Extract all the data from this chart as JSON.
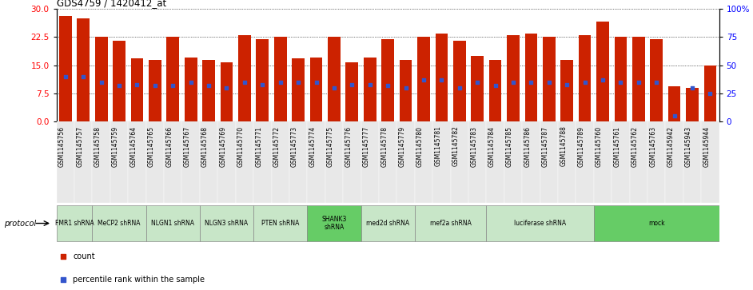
{
  "title": "GDS4759 / 1420412_at",
  "samples": [
    "GSM1145756",
    "GSM1145757",
    "GSM1145758",
    "GSM1145759",
    "GSM1145764",
    "GSM1145765",
    "GSM1145766",
    "GSM1145767",
    "GSM1145768",
    "GSM1145769",
    "GSM1145770",
    "GSM1145771",
    "GSM1145772",
    "GSM1145773",
    "GSM1145774",
    "GSM1145775",
    "GSM1145776",
    "GSM1145777",
    "GSM1145778",
    "GSM1145779",
    "GSM1145780",
    "GSM1145781",
    "GSM1145782",
    "GSM1145783",
    "GSM1145784",
    "GSM1145785",
    "GSM1145786",
    "GSM1145787",
    "GSM1145788",
    "GSM1145789",
    "GSM1145760",
    "GSM1145761",
    "GSM1145762",
    "GSM1145763",
    "GSM1145942",
    "GSM1145943",
    "GSM1145944"
  ],
  "counts": [
    28.0,
    27.5,
    22.5,
    21.5,
    16.8,
    16.5,
    22.5,
    17.0,
    16.5,
    15.8,
    23.0,
    22.0,
    22.5,
    16.8,
    17.0,
    22.5,
    15.8,
    17.0,
    22.0,
    16.5,
    22.5,
    23.5,
    21.5,
    17.5,
    16.5,
    23.0,
    23.5,
    22.5,
    16.5,
    23.0,
    26.5,
    22.5,
    22.5,
    22.0,
    9.5,
    9.0,
    15.0
  ],
  "percentile_ranks": [
    40,
    40,
    35,
    32,
    33,
    32,
    32,
    35,
    32,
    30,
    35,
    33,
    35,
    35,
    35,
    30,
    33,
    33,
    32,
    30,
    37,
    37,
    30,
    35,
    32,
    35,
    35,
    35,
    33,
    35,
    37,
    35,
    35,
    35,
    5,
    30,
    25
  ],
  "protocols": [
    {
      "label": "FMR1 shRNA",
      "start": 0,
      "end": 2,
      "color": "#c8e6c8"
    },
    {
      "label": "MeCP2 shRNA",
      "start": 2,
      "end": 5,
      "color": "#c8e6c8"
    },
    {
      "label": "NLGN1 shRNA",
      "start": 5,
      "end": 8,
      "color": "#c8e6c8"
    },
    {
      "label": "NLGN3 shRNA",
      "start": 8,
      "end": 11,
      "color": "#c8e6c8"
    },
    {
      "label": "PTEN shRNA",
      "start": 11,
      "end": 14,
      "color": "#c8e6c8"
    },
    {
      "label": "SHANK3\nshRNA",
      "start": 14,
      "end": 17,
      "color": "#66cc66"
    },
    {
      "label": "med2d shRNA",
      "start": 17,
      "end": 20,
      "color": "#c8e6c8"
    },
    {
      "label": "mef2a shRNA",
      "start": 20,
      "end": 24,
      "color": "#c8e6c8"
    },
    {
      "label": "luciferase shRNA",
      "start": 24,
      "end": 30,
      "color": "#c8e6c8"
    },
    {
      "label": "mock",
      "start": 30,
      "end": 37,
      "color": "#66cc66"
    }
  ],
  "ylim_left": [
    0,
    30
  ],
  "ylim_right": [
    0,
    100
  ],
  "yticks_left": [
    0,
    7.5,
    15,
    22.5,
    30
  ],
  "yticks_right": [
    0,
    25,
    50,
    75,
    100
  ],
  "bar_color": "#cc2200",
  "dot_color": "#3355cc",
  "bg_color": "#e8e8e8"
}
